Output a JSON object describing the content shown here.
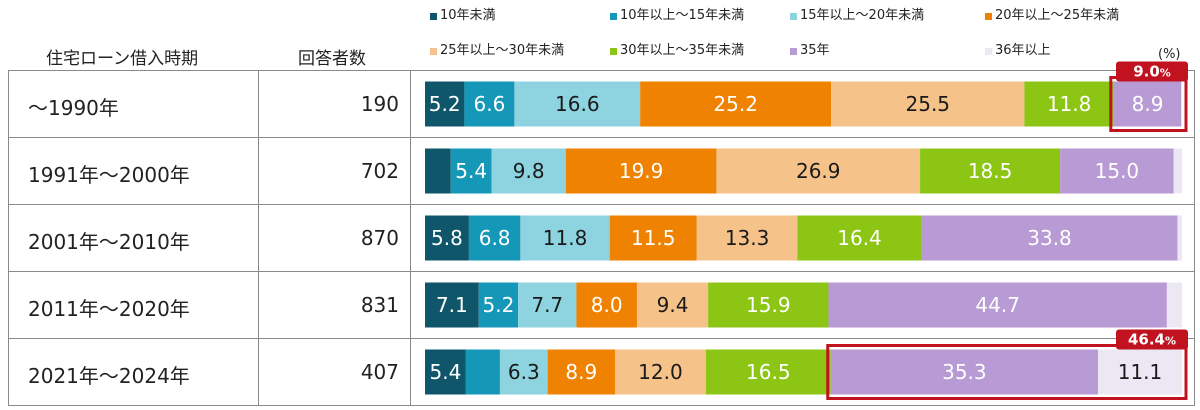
{
  "header": {
    "col_period": "住宅ローン借入時期",
    "col_count": "回答者数",
    "unit": "(%)"
  },
  "rows": [
    {
      "period": "～1990年",
      "count": "190"
    },
    {
      "period": "1991年～2000年",
      "count": "702"
    },
    {
      "period": "2001年～2010年",
      "count": "870"
    },
    {
      "period": "2011年～2020年",
      "count": "831"
    },
    {
      "period": "2021年～2024年",
      "count": "407"
    }
  ],
  "colors": {
    "s1": "#10566b",
    "s2": "#1597b7",
    "s3": "#8dd3e0",
    "s4": "#ef8200",
    "s5": "#f5c38a",
    "s6": "#8cc514",
    "s7": "#b89ad4",
    "s8": "#ece8f3",
    "highlight": "#c0121f"
  },
  "chart_data": {
    "type": "bar",
    "orientation": "horizontal",
    "stacked": true,
    "categories": [
      "～1990年",
      "1991年～2000年",
      "2001年～2010年",
      "2011年～2020年",
      "2021年～2024年"
    ],
    "series": [
      {
        "name": "10年未満",
        "values": [
          5.2,
          3.4,
          5.8,
          7.1,
          5.4
        ]
      },
      {
        "name": "10年以上～15年未満",
        "values": [
          6.6,
          5.4,
          6.8,
          5.2,
          4.5
        ]
      },
      {
        "name": "15年以上～20年未満",
        "values": [
          16.6,
          9.8,
          11.8,
          7.7,
          6.3
        ]
      },
      {
        "name": "20年以上～25年未満",
        "values": [
          25.2,
          19.9,
          11.5,
          8.0,
          8.9
        ]
      },
      {
        "name": "25年以上～30年未満",
        "values": [
          25.5,
          26.9,
          13.3,
          9.4,
          12.0
        ]
      },
      {
        "name": "30年以上～35年未満",
        "values": [
          11.8,
          18.5,
          16.4,
          15.9,
          16.5
        ]
      },
      {
        "name": "35年",
        "values": [
          8.9,
          15.0,
          33.8,
          44.7,
          35.3
        ]
      },
      {
        "name": "36年以上",
        "values": [
          0.1,
          1.1,
          0.6,
          2.0,
          11.1
        ]
      }
    ],
    "labels": [
      [
        "5.2",
        "6.6",
        "16.6",
        "25.2",
        "25.5",
        "11.8",
        "8.9",
        ""
      ],
      [
        "",
        "5.4",
        "9.8",
        "19.9",
        "26.9",
        "18.5",
        "15.0",
        ""
      ],
      [
        "5.8",
        "6.8",
        "11.8",
        "11.5",
        "13.3",
        "16.4",
        "33.8",
        ""
      ],
      [
        "7.1",
        "5.2",
        "7.7",
        "8.0",
        "9.4",
        "15.9",
        "44.7",
        ""
      ],
      [
        "5.4",
        "",
        "6.3",
        "8.9",
        "12.0",
        "16.5",
        "35.3",
        "11.1"
      ]
    ],
    "annotations": [
      {
        "row": 0,
        "from_series": 6,
        "to_series": 7,
        "text": "9.0",
        "suffix": "%"
      },
      {
        "row": 4,
        "from_series": 6,
        "to_series": 7,
        "text": "46.4",
        "suffix": "%"
      }
    ],
    "xlim": [
      0,
      100
    ],
    "legend_placement": "top"
  }
}
